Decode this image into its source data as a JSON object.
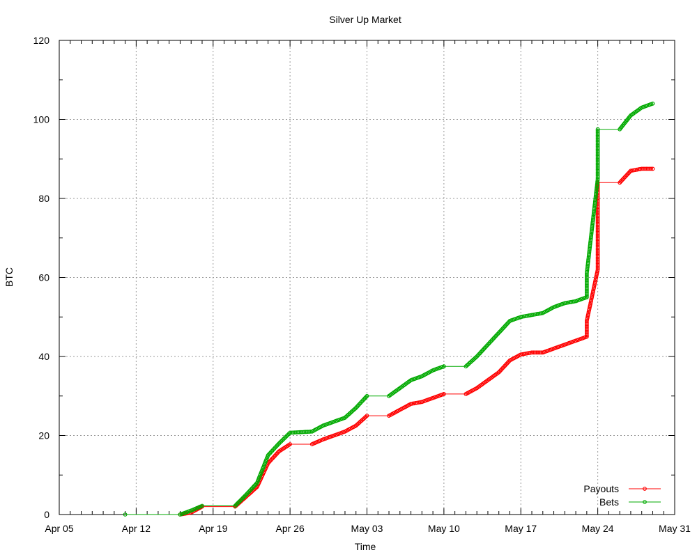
{
  "chart_data": {
    "type": "line",
    "title": "Silver Up Market",
    "xlabel": "Time",
    "ylabel": "BTC",
    "xlim": [
      "Apr 05",
      "May 31"
    ],
    "ylim": [
      0,
      120
    ],
    "x_ticks": [
      "Apr 05",
      "Apr 12",
      "Apr 19",
      "Apr 26",
      "May 03",
      "May 10",
      "May 17",
      "May 24",
      "May 31"
    ],
    "y_ticks": [
      0,
      20,
      40,
      60,
      80,
      100,
      120
    ],
    "grid": true,
    "legend_position": "bottom-right",
    "series": [
      {
        "name": "Payouts",
        "color": "#ff0000",
        "points": [
          [
            "Apr 16",
            0
          ],
          [
            "Apr 17",
            0.5
          ],
          [
            "Apr 18",
            2.0
          ],
          [
            "Apr 21",
            2.0
          ],
          [
            "Apr 22",
            4.5
          ],
          [
            "Apr 23",
            7.0
          ],
          [
            "Apr 24",
            13.0
          ],
          [
            "Apr 25",
            16.0
          ],
          [
            "Apr 26",
            17.8
          ],
          [
            "Apr 28",
            17.8
          ],
          [
            "Apr 29",
            19.0
          ],
          [
            "Apr 30",
            20.0
          ],
          [
            "May 01",
            21.0
          ],
          [
            "May 02",
            22.5
          ],
          [
            "May 03",
            25.0
          ],
          [
            "May 05",
            25.0
          ],
          [
            "May 06",
            26.5
          ],
          [
            "May 07",
            28.0
          ],
          [
            "May 08",
            28.5
          ],
          [
            "May 09",
            29.5
          ],
          [
            "May 10",
            30.5
          ],
          [
            "May 12",
            30.5
          ],
          [
            "May 13",
            32.0
          ],
          [
            "May 14",
            34.0
          ],
          [
            "May 15",
            36.0
          ],
          [
            "May 16",
            39.0
          ],
          [
            "May 17",
            40.5
          ],
          [
            "May 18",
            41.0
          ],
          [
            "May 19",
            41.0
          ],
          [
            "May 20",
            42.0
          ],
          [
            "May 21",
            43.0
          ],
          [
            "May 22",
            44.0
          ],
          [
            "May 23",
            45.0
          ],
          [
            "May 23",
            49.0
          ],
          [
            "May 24",
            62.0
          ],
          [
            "May 24",
            84.0
          ],
          [
            "May 26",
            84.0
          ],
          [
            "May 27",
            87.0
          ],
          [
            "May 28",
            87.5
          ],
          [
            "May 29",
            87.5
          ]
        ]
      },
      {
        "name": "Bets",
        "color": "#00aa00",
        "points": [
          [
            "Apr 11",
            0
          ],
          [
            "Apr 16",
            0
          ],
          [
            "Apr 17",
            1.0
          ],
          [
            "Apr 18",
            2.2
          ],
          [
            "Apr 21",
            2.2
          ],
          [
            "Apr 22",
            5.0
          ],
          [
            "Apr 23",
            8.0
          ],
          [
            "Apr 24",
            15.0
          ],
          [
            "Apr 25",
            18.0
          ],
          [
            "Apr 26",
            20.7
          ],
          [
            "Apr 28",
            21.0
          ],
          [
            "Apr 29",
            22.5
          ],
          [
            "Apr 30",
            23.5
          ],
          [
            "May 01",
            24.5
          ],
          [
            "May 02",
            27.0
          ],
          [
            "May 03",
            30.0
          ],
          [
            "May 05",
            30.0
          ],
          [
            "May 06",
            32.0
          ],
          [
            "May 07",
            34.0
          ],
          [
            "May 08",
            35.0
          ],
          [
            "May 09",
            36.5
          ],
          [
            "May 10",
            37.5
          ],
          [
            "May 12",
            37.5
          ],
          [
            "May 13",
            40.0
          ],
          [
            "May 14",
            43.0
          ],
          [
            "May 15",
            46.0
          ],
          [
            "May 16",
            49.0
          ],
          [
            "May 17",
            50.0
          ],
          [
            "May 18",
            50.5
          ],
          [
            "May 19",
            51.0
          ],
          [
            "May 20",
            52.5
          ],
          [
            "May 21",
            53.5
          ],
          [
            "May 22",
            54.0
          ],
          [
            "May 23",
            55.0
          ],
          [
            "May 23",
            61.0
          ],
          [
            "May 24",
            85.0
          ],
          [
            "May 24",
            97.5
          ],
          [
            "May 26",
            97.5
          ],
          [
            "May 27",
            101.0
          ],
          [
            "May 28",
            103.0
          ],
          [
            "May 29",
            104.0
          ]
        ]
      }
    ]
  }
}
